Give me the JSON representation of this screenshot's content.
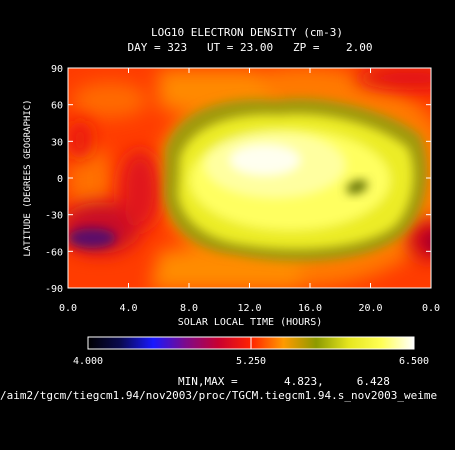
{
  "chart_data": {
    "type": "heatmap",
    "title": "LOG10 ELECTRON DENSITY (cm-3)",
    "subtitle": "DAY = 323   UT = 23.00   ZP =    2.00",
    "xlabel": "SOLAR LOCAL TIME (HOURS)",
    "ylabel": "LATITUDE (DEGREES GEOGRAPHIC)",
    "xlim": [
      0,
      24
    ],
    "ylim": [
      -90,
      90
    ],
    "x_ticks": [
      "0.0",
      "4.0",
      "8.0",
      "12.0",
      "16.0",
      "20.0",
      "0.0"
    ],
    "y_ticks": [
      "90",
      "60",
      "30",
      "0",
      "-30",
      "-60",
      "-90"
    ],
    "colorbar": {
      "min": 4.0,
      "max": 6.5,
      "labels": [
        "4.000",
        "5.250",
        "6.500"
      ]
    },
    "minmax_text": "MIN,MAX =       4.823,     6.428",
    "footer_path": "/aim2/tgcm/tiegcm1.94/nov2003/proc/TGCM.tiegcm1.94.s_nov2003_weime",
    "z_min": 4.823,
    "z_max": 6.428,
    "features": [
      {
        "x": 12.8,
        "y": 0,
        "value": 6.42
      },
      {
        "x": 19.0,
        "y": -10,
        "value": 5.95
      },
      {
        "x": 2.0,
        "y": -50,
        "value": 4.85
      },
      {
        "x": 23.6,
        "y": -50,
        "value": 4.95
      },
      {
        "x": 2.0,
        "y": 60,
        "value": 5.15
      },
      {
        "x": 22.0,
        "y": 78,
        "value": 5.05
      },
      {
        "x": 6.0,
        "y": -5,
        "value": 5.25
      }
    ]
  }
}
